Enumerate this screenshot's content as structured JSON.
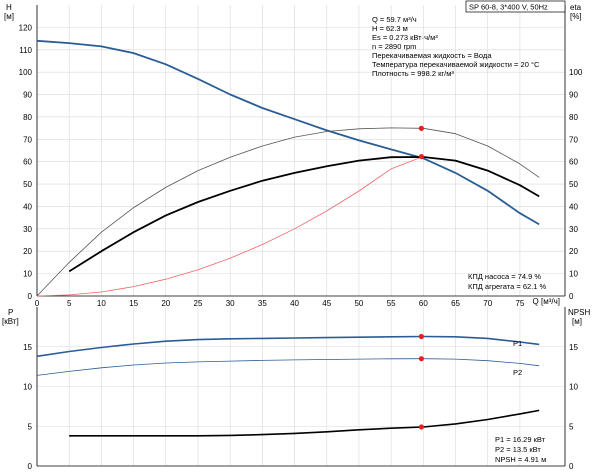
{
  "chart_data": {
    "type": "line",
    "pump_title": "SP 60-8, 3*400 V, 50Hz",
    "operating_point": {
      "lines": [
        "Q = 59.7 м³/ч",
        "H = 62.3 м",
        "Es = 0.273 кВт·ч/м³",
        "n = 2890 rpm",
        "Перекачиваемая жидкость = Вода",
        "Температура перекачиваемой жидкости = 20 °C",
        "Плотность = 998.2 кг/м³"
      ]
    },
    "top_chart": {
      "y_left_label_line1": "H",
      "y_left_label_line2": "[м]",
      "y_right_label_line1": "eta",
      "y_right_label_line2": "[%]",
      "x_label": "Q [м³/ч]",
      "x_ticks": [
        0,
        5,
        10,
        15,
        20,
        25,
        30,
        35,
        40,
        45,
        50,
        55,
        60,
        65,
        70,
        75
      ],
      "y_left_ticks": [
        0,
        10,
        20,
        30,
        40,
        50,
        60,
        70,
        80,
        90,
        100,
        110,
        120
      ],
      "y_right_ticks": [
        0,
        10,
        20,
        30,
        40,
        50,
        60,
        70,
        80,
        90,
        100
      ],
      "xlim": [
        0,
        82
      ],
      "ylim_left": [
        0,
        130
      ],
      "efficiency_labels": [
        "КПД насоса = 74.9 %",
        "КПД агрегата = 62.1 %"
      ],
      "series": [
        {
          "id": "head",
          "color": "#2a5d95",
          "width": 1.8,
          "x": [
            0,
            5,
            10,
            15,
            20,
            25,
            30,
            35,
            40,
            45,
            50,
            55,
            60,
            65,
            70,
            75,
            78
          ],
          "y": [
            114,
            113,
            111.5,
            108.5,
            103.5,
            97,
            90,
            84,
            79,
            74,
            69.5,
            65.5,
            61.5,
            55,
            47,
            37,
            32
          ]
        },
        {
          "id": "pump-efficiency",
          "color": "#555555",
          "width": 0.8,
          "x": [
            0,
            5,
            10,
            15,
            20,
            25,
            30,
            35,
            40,
            45,
            50,
            55,
            60,
            65,
            70,
            75,
            78
          ],
          "y": [
            0,
            15,
            28.5,
            39.5,
            48.5,
            56,
            62,
            67,
            71,
            73.5,
            74.7,
            75.1,
            74.9,
            72.5,
            67,
            59,
            53
          ]
        },
        {
          "id": "unit-efficiency",
          "color": "#000000",
          "width": 1.8,
          "x": [
            5,
            10,
            15,
            20,
            25,
            30,
            35,
            40,
            45,
            50,
            55,
            60,
            65,
            70,
            75,
            78
          ],
          "y": [
            11,
            20,
            28.5,
            36,
            42,
            47,
            51.5,
            55,
            58,
            60.5,
            62,
            62.1,
            60.5,
            56,
            49.5,
            44.5
          ]
        },
        {
          "id": "system-curve",
          "color": "#ee6666",
          "width": 0.8,
          "x": [
            0,
            5,
            10,
            15,
            20,
            25,
            30,
            35,
            40,
            45,
            50,
            55,
            60
          ],
          "y": [
            0,
            0.5,
            1.8,
            4.2,
            7.5,
            11.7,
            16.9,
            23,
            30,
            38,
            46.9,
            56.8,
            62.3
          ]
        }
      ],
      "points": [
        {
          "x": 59.7,
          "y": 74.9
        },
        {
          "x": 59.7,
          "y": 62.3
        }
      ]
    },
    "bottom_chart": {
      "y_left_label_line1": "P",
      "y_left_label_line2": "[кВт]",
      "y_right_label": "NPSH",
      "y_right_label_line2": "[м]",
      "y_left_ticks": [
        0,
        5,
        10,
        15
      ],
      "y_right_ticks": [
        0,
        5,
        10,
        15
      ],
      "ylim": [
        0,
        20
      ],
      "power_labels": [
        "P1 = 16.29 кВт",
        "P2 = 13.5 кВт",
        "NPSH = 4.91 м"
      ],
      "series": [
        {
          "id": "p1",
          "name": "P1",
          "color": "#2a5d95",
          "width": 1.6,
          "x": [
            0,
            5,
            10,
            15,
            20,
            25,
            30,
            35,
            40,
            45,
            50,
            55,
            60,
            65,
            70,
            75,
            78
          ],
          "y": [
            13.8,
            14.4,
            14.9,
            15.35,
            15.7,
            15.9,
            16.0,
            16.05,
            16.1,
            16.15,
            16.2,
            16.25,
            16.29,
            16.25,
            16.05,
            15.6,
            15.3
          ]
        },
        {
          "id": "p2",
          "name": "P2",
          "color": "#2a5d95",
          "width": 0.8,
          "x": [
            0,
            5,
            10,
            15,
            20,
            25,
            30,
            35,
            40,
            45,
            50,
            55,
            60,
            65,
            70,
            75,
            78
          ],
          "y": [
            11.4,
            11.9,
            12.35,
            12.7,
            12.95,
            13.1,
            13.2,
            13.28,
            13.35,
            13.4,
            13.45,
            13.48,
            13.5,
            13.45,
            13.25,
            12.9,
            12.6
          ]
        },
        {
          "id": "npsh",
          "color": "#000000",
          "width": 1.6,
          "x": [
            5,
            10,
            15,
            20,
            25,
            30,
            35,
            40,
            45,
            50,
            55,
            60,
            65,
            70,
            75,
            78
          ],
          "y": [
            3.8,
            3.8,
            3.8,
            3.8,
            3.8,
            3.85,
            3.95,
            4.1,
            4.3,
            4.55,
            4.75,
            4.91,
            5.3,
            5.85,
            6.55,
            7.0
          ]
        }
      ],
      "points": [
        {
          "x": 59.7,
          "y": 16.29
        },
        {
          "x": 59.7,
          "y": 13.5
        },
        {
          "x": 59.7,
          "y": 4.91
        }
      ]
    }
  }
}
